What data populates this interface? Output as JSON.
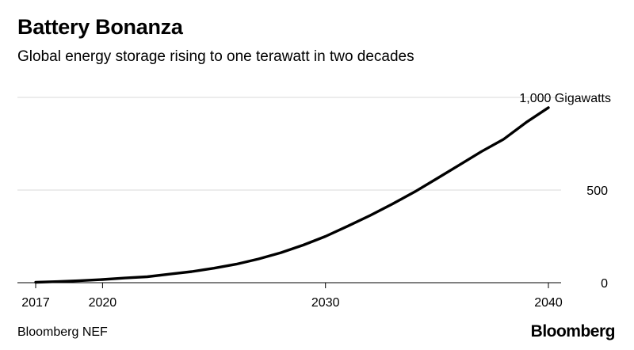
{
  "header": {
    "title": "Battery Bonanza",
    "subtitle": "Global energy storage rising to one terawatt in two decades"
  },
  "footer": {
    "source": "Bloomberg NEF",
    "brand": "Bloomberg"
  },
  "colors": {
    "line": "#000000",
    "grid": "#d9d9d9",
    "axis": "#000000",
    "text": "#000000"
  },
  "chart_data": {
    "type": "line",
    "title": "Battery Bonanza",
    "subtitle": "Global energy storage rising to one terawatt in two decades",
    "xlabel": "",
    "ylabel": "",
    "x": [
      2017,
      2018,
      2019,
      2020,
      2021,
      2022,
      2023,
      2024,
      2025,
      2026,
      2027,
      2028,
      2029,
      2030,
      2031,
      2032,
      2033,
      2034,
      2035,
      2036,
      2037,
      2038,
      2039,
      2040
    ],
    "series": [
      {
        "name": "",
        "values": [
          2,
          6,
          11,
          17,
          25,
          32,
          46,
          60,
          78,
          100,
          128,
          162,
          203,
          250,
          305,
          363,
          425,
          490,
          562,
          635,
          708,
          775,
          865,
          945
        ]
      }
    ],
    "xlim": [
      2017,
      2040
    ],
    "ylim": [
      0,
      1000
    ],
    "x_tick_labels": [
      "2017",
      "2020",
      "2030",
      "2040"
    ],
    "x_tick_values": [
      2017,
      2020,
      2030,
      2040
    ],
    "y_tick_labels": [
      "0",
      "500",
      "1,000 Gigawatts"
    ],
    "y_tick_values": [
      0,
      500,
      1000
    ],
    "grid": true,
    "y_axis_side": "right"
  }
}
